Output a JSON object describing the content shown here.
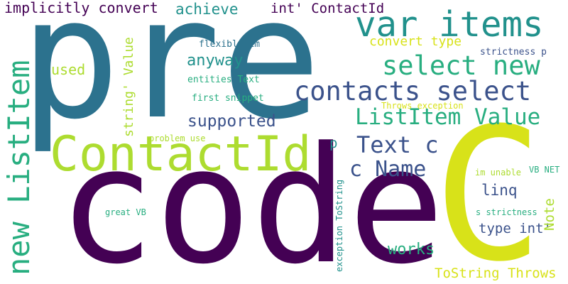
{
  "palette": {
    "dark_purple": "#440154",
    "navy_blue": "#3b528b",
    "steel_blue": "#2c728e",
    "teal": "#21918c",
    "green_teal": "#28ae80",
    "green": "#5ec962",
    "lime": "#addc30",
    "yellow": "#d8e219"
  },
  "words": [
    {
      "text": "pre",
      "color": "steel_blue"
    },
    {
      "text": "code",
      "color": "dark_purple"
    },
    {
      "text": "C",
      "color": "yellow"
    },
    {
      "text": "ContactId",
      "color": "lime"
    },
    {
      "text": "var items",
      "color": "teal"
    },
    {
      "text": "select new",
      "color": "green_teal"
    },
    {
      "text": "contacts select",
      "color": "navy_blue"
    },
    {
      "text": "new ListItem",
      "color": "green_teal"
    },
    {
      "text": "ListItem Value",
      "color": "green_teal"
    },
    {
      "text": "Text c",
      "color": "navy_blue"
    },
    {
      "text": "c Name",
      "color": "navy_blue"
    },
    {
      "text": "supported",
      "color": "navy_blue"
    },
    {
      "text": "anyway",
      "color": "teal"
    },
    {
      "text": "achieve",
      "color": "teal"
    },
    {
      "text": "implicitly convert",
      "color": "dark_purple"
    },
    {
      "text": "int' ContactId",
      "color": "dark_purple"
    },
    {
      "text": "convert type",
      "color": "yellow"
    },
    {
      "text": "strictness p",
      "color": "navy_blue"
    },
    {
      "text": "used",
      "color": "lime"
    },
    {
      "text": "linq",
      "color": "navy_blue"
    },
    {
      "text": "type int'",
      "color": "navy_blue"
    },
    {
      "text": "works",
      "color": "green_teal"
    },
    {
      "text": "ToString Throws",
      "color": "yellow"
    },
    {
      "text": "p",
      "color": "teal"
    },
    {
      "text": "string' Value",
      "color": "lime"
    },
    {
      "text": "Note",
      "color": "lime"
    },
    {
      "text": "flexible im",
      "color": "steel_blue"
    },
    {
      "text": "entities Text",
      "color": "green_teal"
    },
    {
      "text": "first snippet",
      "color": "green_teal"
    },
    {
      "text": "Throws exception",
      "color": "yellow"
    },
    {
      "text": "problem use",
      "color": "lime"
    },
    {
      "text": "im unable",
      "color": "lime"
    },
    {
      "text": "VB NET",
      "color": "green_teal"
    },
    {
      "text": "great VB",
      "color": "green_teal"
    },
    {
      "text": "s strictness",
      "color": "green_teal"
    },
    {
      "text": "exception ToString",
      "color": "teal"
    }
  ]
}
